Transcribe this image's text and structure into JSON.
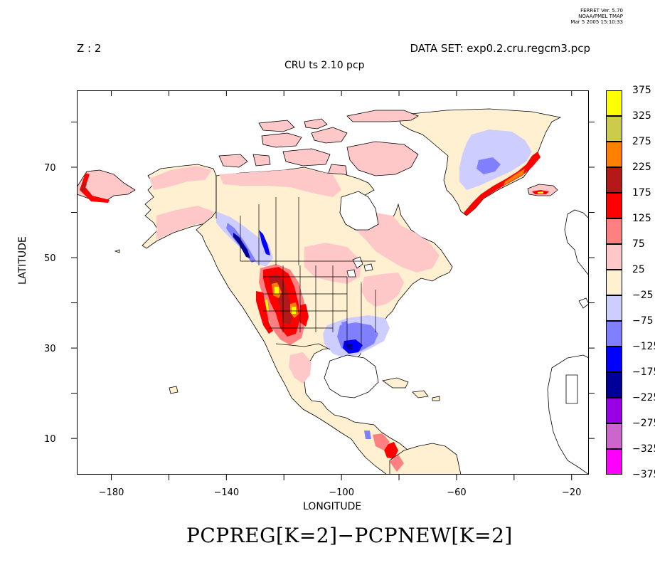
{
  "ferret_stamp": {
    "line1": "FERRET Ver. 5.70",
    "line2": "NOAA/PMEL TMAP",
    "line3": "Mar  5 2005 15:10:33"
  },
  "header": {
    "z_level": "Z : 2",
    "dataset": "DATA SET: exp0.2.cru.regcm3.pcp",
    "title": "CRU ts 2.10 pcp"
  },
  "axes": {
    "xlabel": "LONGITUDE",
    "ylabel": "LATITUDE",
    "x_range": [
      -192,
      -14
    ],
    "y_range": [
      2,
      87
    ],
    "x_ticks": [
      {
        "value": -180,
        "label": "-180"
      },
      {
        "value": -140,
        "label": "-140"
      },
      {
        "value": -100,
        "label": "-100"
      },
      {
        "value": -60,
        "label": "-60"
      },
      {
        "value": -20,
        "label": "-20"
      }
    ],
    "y_ticks": [
      {
        "value": 10,
        "label": "10"
      },
      {
        "value": 30,
        "label": "30"
      },
      {
        "value": 50,
        "label": "50"
      },
      {
        "value": 70,
        "label": "70"
      }
    ]
  },
  "colorbar": {
    "levels": [
      {
        "label": "375",
        "color": "#ffff00"
      },
      {
        "label": "325",
        "color": "#cccc4c"
      },
      {
        "label": "275",
        "color": "#ff8000"
      },
      {
        "label": "225",
        "color": "#b31919"
      },
      {
        "label": "175",
        "color": "#ff0000"
      },
      {
        "label": "125",
        "color": "#ff8080"
      },
      {
        "label": "75",
        "color": "#ffc8c8"
      },
      {
        "label": "25",
        "color": "#fff0d2"
      },
      {
        "label": "-25",
        "color": "#cdcdff"
      },
      {
        "label": "-75",
        "color": "#8080ff"
      },
      {
        "label": "-125",
        "color": "#0000ff"
      },
      {
        "label": "-175",
        "color": "#000099"
      },
      {
        "label": "-225",
        "color": "#9900e6"
      },
      {
        "label": "-275",
        "color": "#cc66cc"
      },
      {
        "label": "-325",
        "color": "#ff00ff"
      },
      {
        "label": "-375",
        "color": ""
      }
    ]
  },
  "footer": {
    "expression": "PCPREG[K=2]−PCPNEW[K=2]"
  },
  "colors": {
    "base": "#fff0d2",
    "light_pink": "#ffc8c8",
    "pink": "#ff8080",
    "red": "#ff0000",
    "dark_red": "#b31919",
    "orange": "#ff8000",
    "yellow": "#ffff00",
    "light_blue": "#cdcdff",
    "blue_mid": "#8080ff",
    "blue": "#0000ff",
    "dark_blue": "#000099"
  }
}
